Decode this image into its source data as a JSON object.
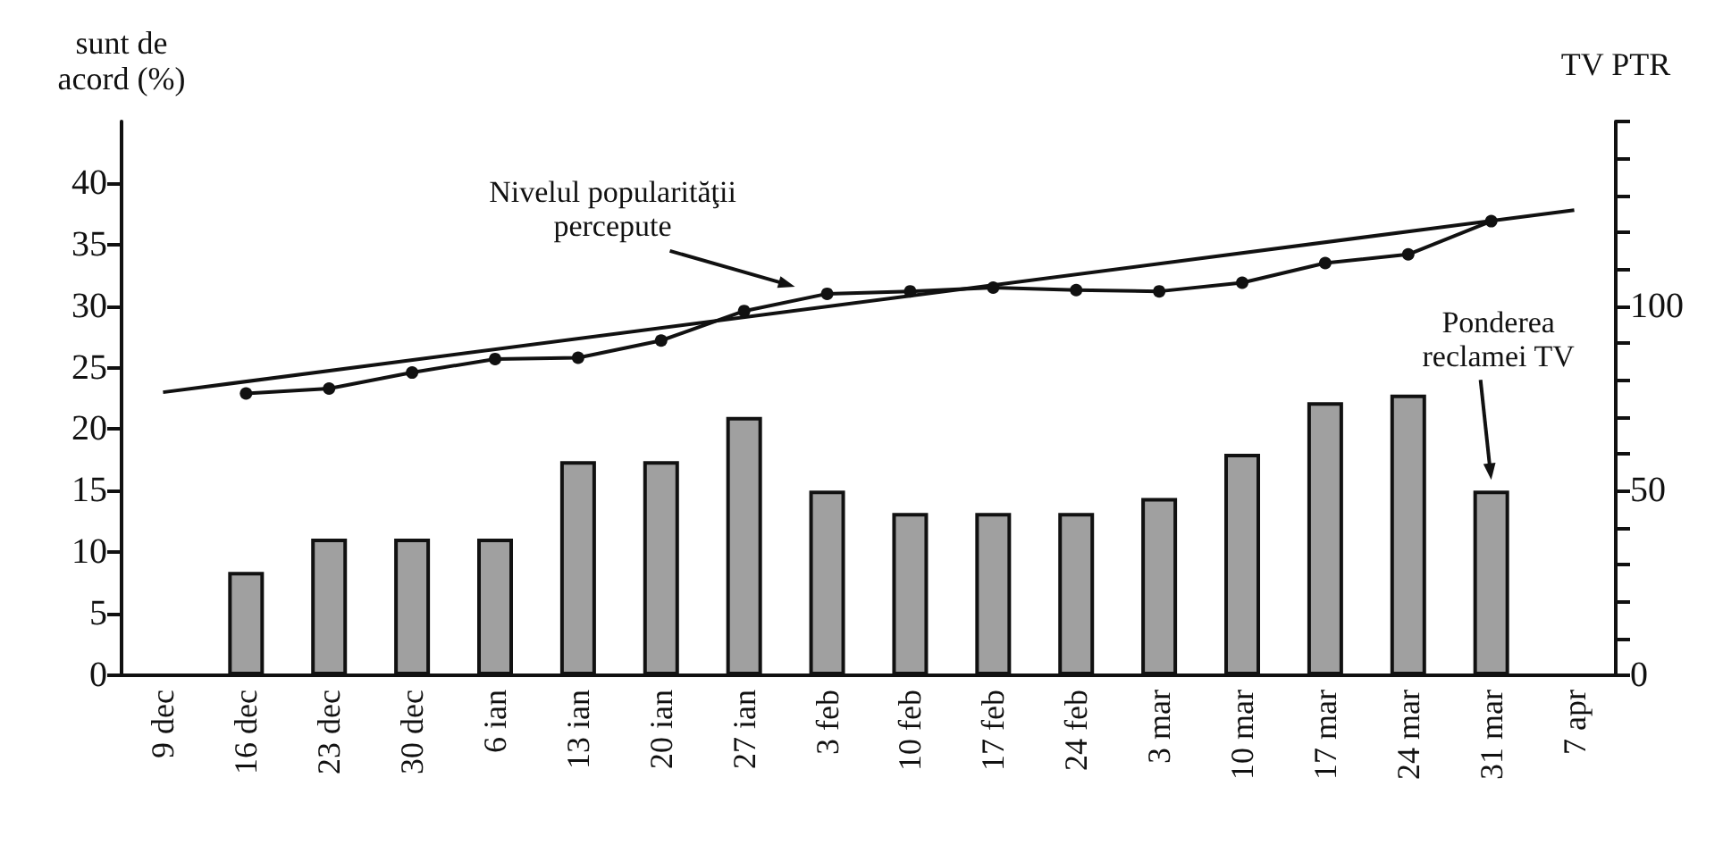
{
  "chart_data": {
    "type": "bar",
    "ylabel": "sunt de\nacord (%)",
    "y2label": "TV PTR",
    "categories": [
      "9 dec",
      "16 dec",
      "23 dec",
      "30 dec",
      "6 ian",
      "13 ian",
      "20 ian",
      "27 ian",
      "3 feb",
      "10 feb",
      "17 feb",
      "24 feb",
      "3 mar",
      "10 mar",
      "17 mar",
      "24 mar",
      "31 mar",
      "7 apr"
    ],
    "series": [
      {
        "name": "Ponderea\nreclamei TV",
        "axis": "y2",
        "color": "#a0a0a0",
        "values": [
          null,
          28,
          37,
          37,
          37,
          58,
          58,
          70,
          50,
          44,
          44,
          44,
          48,
          60,
          74,
          76,
          50,
          null
        ]
      },
      {
        "name": "Nivelul popularităţii\npercepute",
        "type": "line",
        "marker": "circle",
        "color": "#111111",
        "values": [
          null,
          22.9,
          23.3,
          24.6,
          25.7,
          25.8,
          27.2,
          29.6,
          31.0,
          31.2,
          31.5,
          31.3,
          31.2,
          31.9,
          33.5,
          34.2,
          36.9,
          null
        ]
      },
      {
        "type": "line",
        "marker": "none",
        "color": "#111111",
        "x": [
          "9 dec",
          "7 apr"
        ],
        "values": [
          23.0,
          37.8
        ]
      }
    ],
    "ylim": [
      0,
      45
    ],
    "yticks": [
      0,
      5,
      10,
      15,
      20,
      25,
      30,
      35,
      40
    ],
    "y2lim": [
      0,
      150
    ],
    "y2ticks": [
      0,
      {
        "value": 10,
        "label": null
      },
      {
        "value": 20,
        "label": null
      },
      {
        "value": 30,
        "label": null
      },
      {
        "value": 40,
        "label": null
      },
      50,
      {
        "value": 60,
        "label": null
      },
      {
        "value": 70,
        "label": null
      },
      {
        "value": 80,
        "label": null
      },
      {
        "value": 90,
        "label": null
      },
      100,
      {
        "value": 110,
        "label": null
      },
      {
        "value": 120,
        "label": null
      },
      {
        "value": 130,
        "label": null
      },
      {
        "value": 140,
        "label": null
      },
      {
        "value": 150,
        "label": null
      }
    ],
    "grid": false,
    "legend": false
  }
}
